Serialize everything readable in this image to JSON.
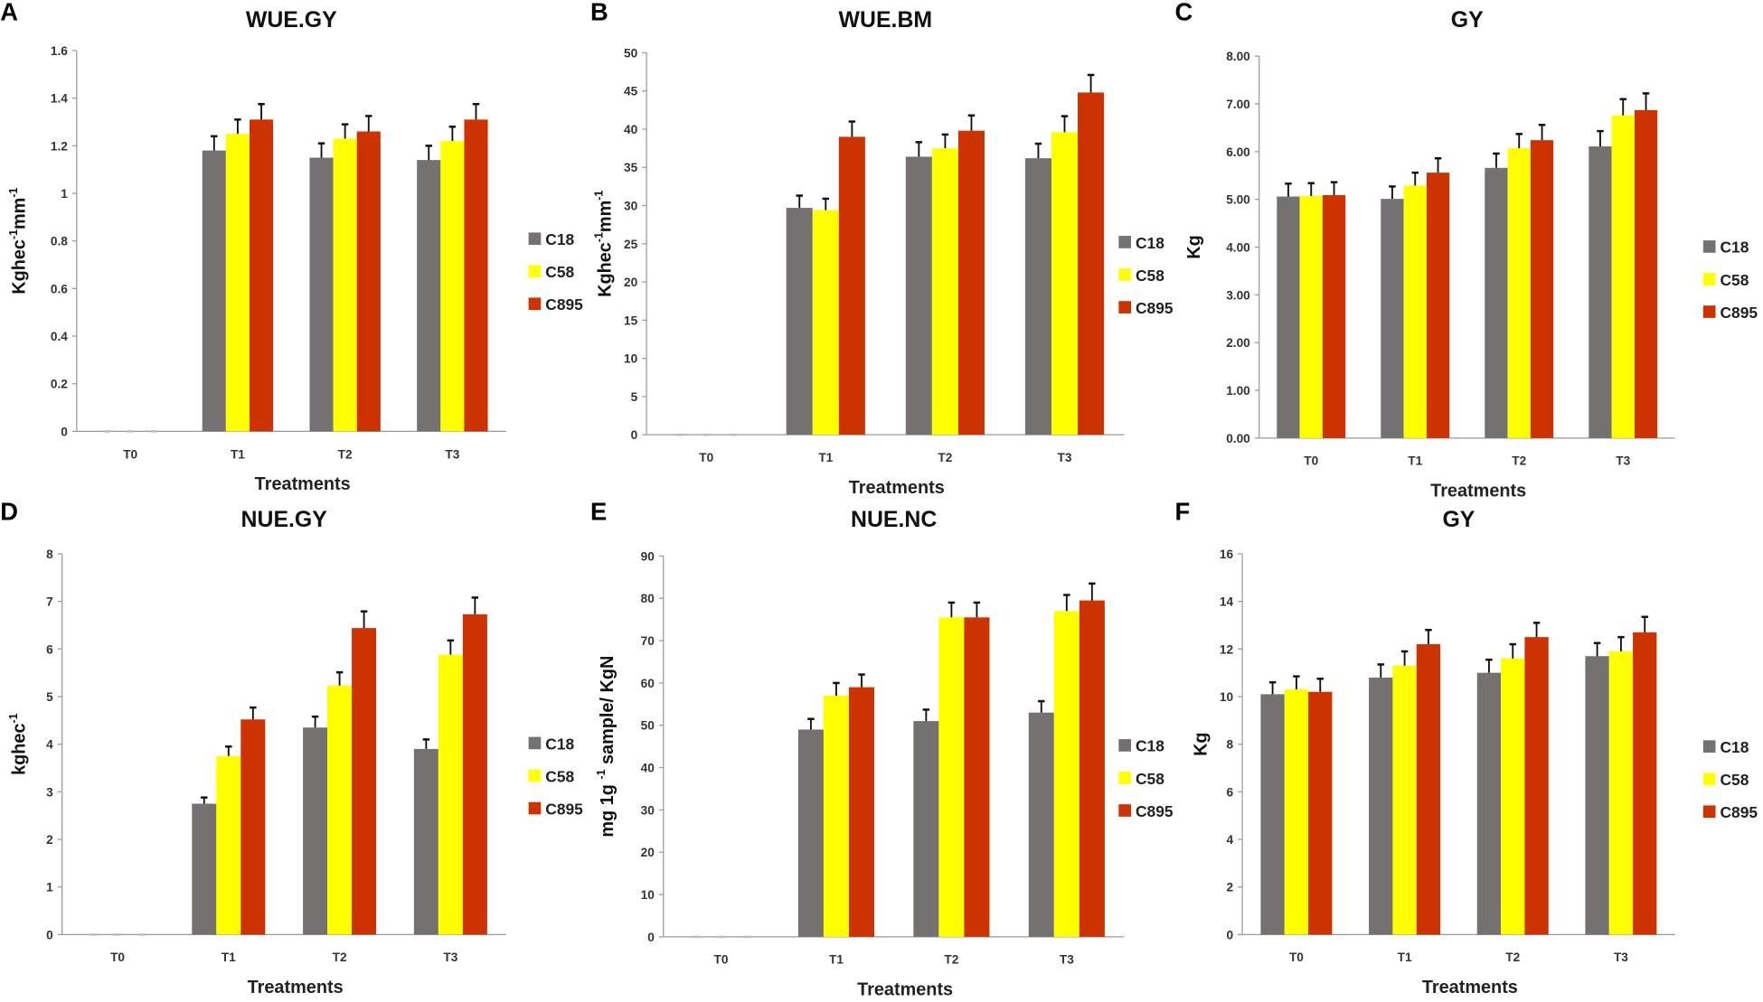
{
  "colors": {
    "C18": "#767171",
    "C58": "#ffff00",
    "C895": "#cc3300",
    "axis": "#999999",
    "error": "#111111"
  },
  "chart_data": [
    {
      "type": "bar",
      "letter": "A",
      "title": "WUE.GY",
      "xlabel": "Treatments",
      "ylabel": {
        "base": "Kghec",
        "sup1": "-1",
        "mid": "mm",
        "sup2": "-1"
      },
      "categories": [
        "T0",
        "T1",
        "T2",
        "T3"
      ],
      "ylim": [
        0,
        1.6
      ],
      "yticks": [
        "0",
        "0.2",
        "0.4",
        "0.6",
        "0.8",
        "1",
        "1.2",
        "1.4",
        "1.6"
      ],
      "legend": "right",
      "series": [
        {
          "name": "C18",
          "values": [
            0,
            1.18,
            1.15,
            1.14
          ],
          "errors": [
            0,
            0.06,
            0.06,
            0.06
          ]
        },
        {
          "name": "C58",
          "values": [
            0,
            1.25,
            1.23,
            1.22
          ],
          "errors": [
            0,
            0.06,
            0.06,
            0.06
          ]
        },
        {
          "name": "C895",
          "values": [
            0,
            1.31,
            1.26,
            1.31
          ],
          "errors": [
            0,
            0.065,
            0.065,
            0.065
          ]
        }
      ]
    },
    {
      "type": "bar",
      "letter": "B",
      "title": "WUE.BM",
      "xlabel": "Treatments",
      "ylabel": {
        "base": "Kghec",
        "sup1": "-1",
        "mid": "mm",
        "sup2": "-1"
      },
      "categories": [
        "T0",
        "T1",
        "T2",
        "T3"
      ],
      "ylim": [
        0,
        50
      ],
      "yticks": [
        "0",
        "5",
        "10",
        "15",
        "20",
        "25",
        "30",
        "35",
        "40",
        "45",
        "50"
      ],
      "legend": "right",
      "series": [
        {
          "name": "C18",
          "values": [
            0,
            29.7,
            36.4,
            36.2
          ],
          "errors": [
            0,
            1.6,
            1.9,
            1.9
          ]
        },
        {
          "name": "C58",
          "values": [
            0,
            29.4,
            37.5,
            39.6
          ],
          "errors": [
            0,
            1.5,
            1.8,
            2.1
          ]
        },
        {
          "name": "C895",
          "values": [
            0,
            39.0,
            39.8,
            44.8
          ],
          "errors": [
            0,
            2.0,
            2.0,
            2.3
          ]
        }
      ]
    },
    {
      "type": "bar",
      "letter": "C",
      "title": "GY",
      "xlabel": "Treatments",
      "ylabel": {
        "base": "Kg",
        "sup1": "",
        "mid": "",
        "sup2": ""
      },
      "categories": [
        "T0",
        "T1",
        "T2",
        "T3"
      ],
      "ylim": [
        0,
        8
      ],
      "yticks": [
        "0.00",
        "1.00",
        "2.00",
        "3.00",
        "4.00",
        "5.00",
        "6.00",
        "7.00",
        "8.00"
      ],
      "legend": "right",
      "series": [
        {
          "name": "C18",
          "values": [
            5.06,
            5.01,
            5.66,
            6.11
          ],
          "errors": [
            0.27,
            0.26,
            0.3,
            0.32
          ]
        },
        {
          "name": "C58",
          "values": [
            5.07,
            5.29,
            6.07,
            6.76
          ],
          "errors": [
            0.27,
            0.27,
            0.3,
            0.34
          ]
        },
        {
          "name": "C895",
          "values": [
            5.09,
            5.56,
            6.24,
            6.87
          ],
          "errors": [
            0.27,
            0.3,
            0.32,
            0.35
          ]
        }
      ]
    },
    {
      "type": "bar",
      "letter": "D",
      "title": "NUE.GY",
      "xlabel": "Treatments",
      "ylabel": {
        "base": "kghec",
        "sup1": "-1",
        "mid": "",
        "sup2": ""
      },
      "categories": [
        "T0",
        "T1",
        "T2",
        "T3"
      ],
      "ylim": [
        0,
        8
      ],
      "yticks": [
        "0",
        "1",
        "2",
        "3",
        "4",
        "5",
        "6",
        "7",
        "8"
      ],
      "legend": "right",
      "series": [
        {
          "name": "C18",
          "values": [
            0,
            2.75,
            4.35,
            3.9
          ],
          "errors": [
            0,
            0.13,
            0.23,
            0.2
          ]
        },
        {
          "name": "C58",
          "values": [
            0,
            3.75,
            5.23,
            5.88
          ],
          "errors": [
            0,
            0.2,
            0.28,
            0.3
          ]
        },
        {
          "name": "C895",
          "values": [
            0,
            4.52,
            6.44,
            6.73
          ],
          "errors": [
            0,
            0.25,
            0.35,
            0.35
          ]
        }
      ]
    },
    {
      "type": "bar",
      "letter": "E",
      "title": "NUE.NC",
      "xlabel": "Treatments",
      "ylabel": {
        "base": "mg 1g ",
        "sup1": "-1",
        "mid": " sample/ KgN",
        "sup2": ""
      },
      "categories": [
        "T0",
        "T1",
        "T2",
        "T3"
      ],
      "ylim": [
        0,
        90
      ],
      "yticks": [
        "0",
        "10",
        "20",
        "30",
        "40",
        "50",
        "60",
        "70",
        "80",
        "90"
      ],
      "legend": "right",
      "series": [
        {
          "name": "C18",
          "values": [
            0,
            49,
            51,
            53
          ],
          "errors": [
            0,
            2.5,
            2.7,
            2.7
          ]
        },
        {
          "name": "C58",
          "values": [
            0,
            57,
            75.5,
            77
          ],
          "errors": [
            0,
            3,
            3.5,
            3.8
          ]
        },
        {
          "name": "C895",
          "values": [
            0,
            59,
            75.5,
            79.5
          ],
          "errors": [
            0,
            3,
            3.5,
            4
          ]
        }
      ]
    },
    {
      "type": "bar",
      "letter": "F",
      "title": "GY",
      "xlabel": "Treatments",
      "ylabel": {
        "base": "Kg",
        "sup1": "",
        "mid": "",
        "sup2": ""
      },
      "categories": [
        "T0",
        "T1",
        "T2",
        "T3"
      ],
      "ylim": [
        0,
        16
      ],
      "yticks": [
        "0",
        "2",
        "4",
        "6",
        "8",
        "10",
        "12",
        "14",
        "16"
      ],
      "legend": "right",
      "series": [
        {
          "name": "C18",
          "values": [
            10.1,
            10.8,
            11.0,
            11.7
          ],
          "errors": [
            0.5,
            0.55,
            0.55,
            0.55
          ]
        },
        {
          "name": "C58",
          "values": [
            10.3,
            11.3,
            11.6,
            11.9
          ],
          "errors": [
            0.55,
            0.6,
            0.6,
            0.6
          ]
        },
        {
          "name": "C895",
          "values": [
            10.2,
            12.2,
            12.5,
            12.7
          ],
          "errors": [
            0.55,
            0.6,
            0.6,
            0.65
          ]
        }
      ]
    }
  ]
}
